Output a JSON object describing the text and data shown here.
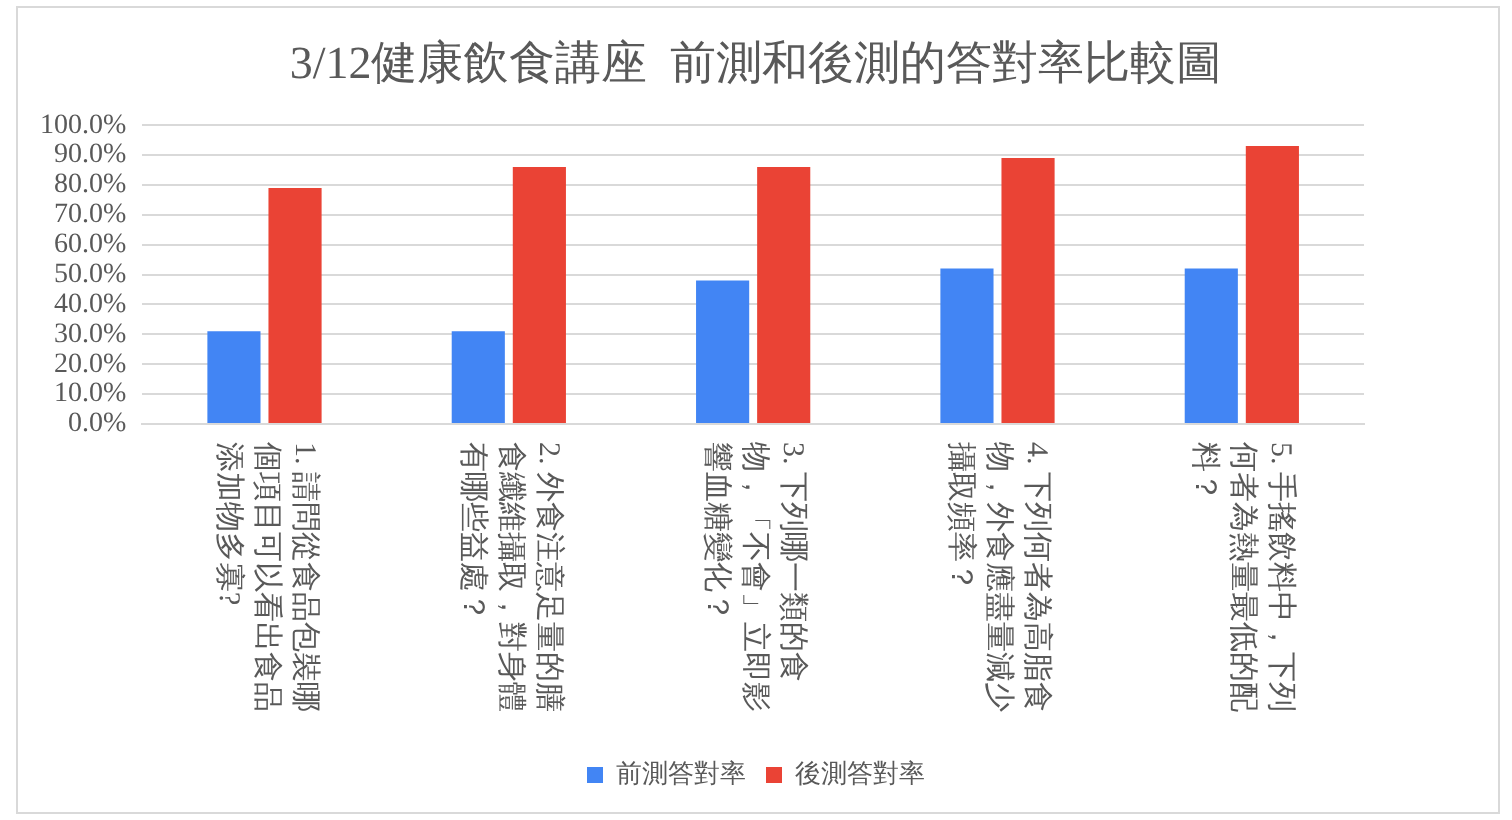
{
  "chart_data": {
    "type": "bar",
    "title": "3/12健康飲食講座  前測和後測的答對率比較圖",
    "categories": [
      "1. 請問從食品包裝哪個項目可以看出食品添加物多寡?",
      "2. 外食注意足量的膳食纖維攝取，對身體有哪些益處？",
      "3. 下列哪一類的食物，「不會」立即影響血糖變化？",
      "4. 下列何者為高脂食物，外食應盡量減少攝取頻率？",
      "5. 手搖飲料中，下列何者為熱量最低的配料？"
    ],
    "series": [
      {
        "name": "前測答對率",
        "color": "#4285f4",
        "values": [
          31,
          31,
          48,
          52,
          52
        ]
      },
      {
        "name": "後測答對率",
        "color": "#ea4335",
        "values": [
          79,
          86,
          86,
          89,
          93
        ]
      }
    ],
    "ylim": [
      0,
      100
    ],
    "yticks": [
      {
        "value": 0,
        "label": "0.0%"
      },
      {
        "value": 10,
        "label": "10.0%"
      },
      {
        "value": 20,
        "label": "20.0%"
      },
      {
        "value": 30,
        "label": "30.0%"
      },
      {
        "value": 40,
        "label": "40.0%"
      },
      {
        "value": 50,
        "label": "50.0%"
      },
      {
        "value": 60,
        "label": "60.0%"
      },
      {
        "value": 70,
        "label": "70.0%"
      },
      {
        "value": 80,
        "label": "80.0%"
      },
      {
        "value": 90,
        "label": "90.0%"
      },
      {
        "value": 100,
        "label": "100.0%"
      }
    ],
    "grid": "y",
    "legend": "bottom"
  }
}
